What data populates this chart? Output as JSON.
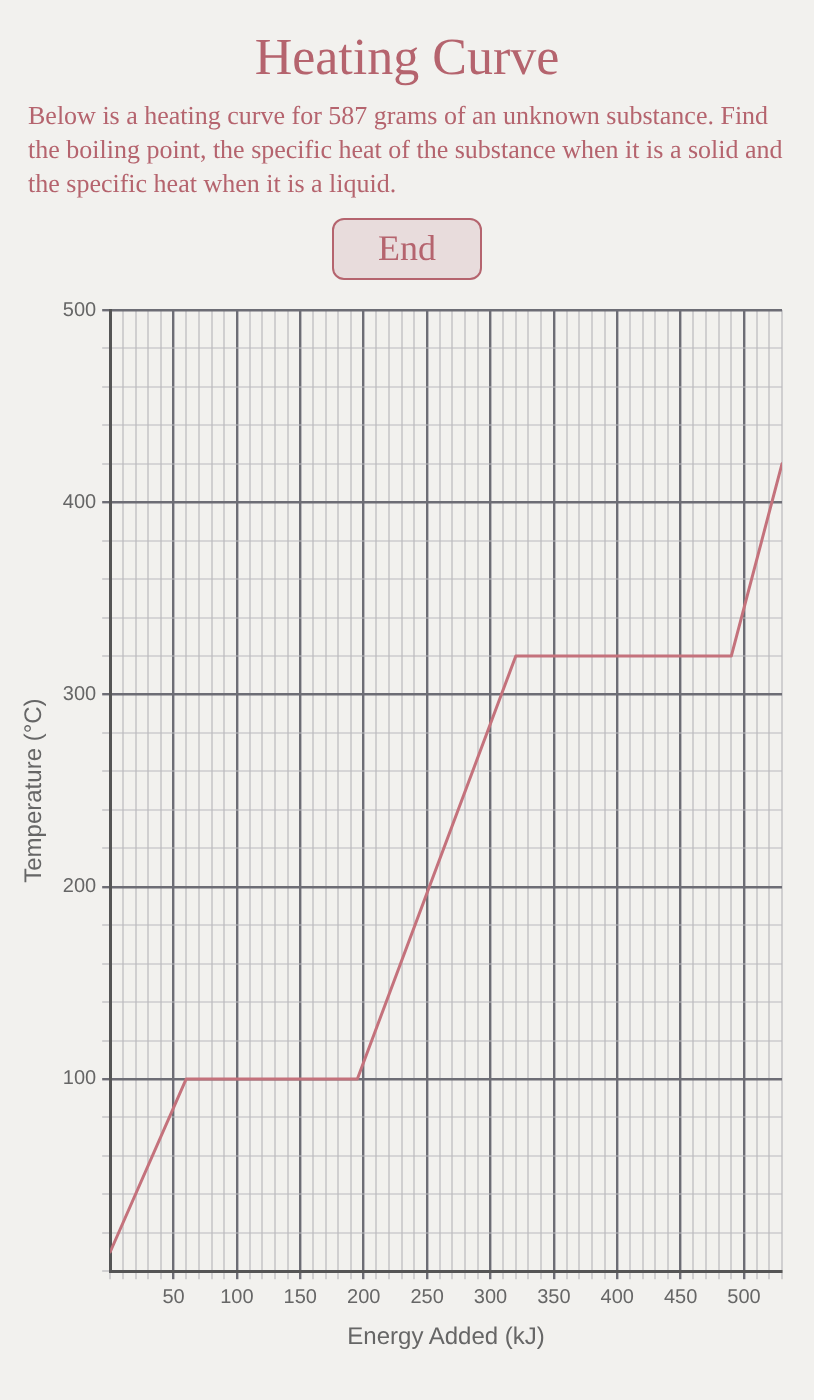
{
  "chart_data": {
    "type": "line",
    "title": "Heating Curve",
    "subtitle": "Below is a heating curve for 587 grams of an unknown substance. Find the boiling point, the specific heat of the substance when it is a solid and the specific heat when it is a liquid.",
    "xlabel": "Energy Added (kJ)",
    "ylabel": "Temperature (°C)",
    "annotations": [
      "End"
    ],
    "x": [
      0,
      60,
      195,
      320,
      490,
      530
    ],
    "series": [
      {
        "color": "#c4727c",
        "values": [
          10,
          100,
          100,
          320,
          320,
          420
        ]
      }
    ],
    "xlim": [
      0,
      530
    ],
    "xticks": [
      {
        "value": 0,
        "label": null
      },
      {
        "value": 10,
        "label": null
      },
      {
        "value": 20,
        "label": null
      },
      {
        "value": 30,
        "label": null
      },
      {
        "value": 40,
        "label": null
      },
      50,
      {
        "value": 60,
        "label": null
      },
      {
        "value": 70,
        "label": null
      },
      {
        "value": 80,
        "label": null
      },
      {
        "value": 90,
        "label": null
      },
      100,
      {
        "value": 110,
        "label": null
      },
      {
        "value": 120,
        "label": null
      },
      {
        "value": 130,
        "label": null
      },
      {
        "value": 140,
        "label": null
      },
      150,
      {
        "value": 160,
        "label": null
      },
      {
        "value": 170,
        "label": null
      },
      {
        "value": 180,
        "label": null
      },
      {
        "value": 190,
        "label": null
      },
      200,
      {
        "value": 210,
        "label": null
      },
      {
        "value": 220,
        "label": null
      },
      {
        "value": 230,
        "label": null
      },
      {
        "value": 240,
        "label": null
      },
      250,
      {
        "value": 260,
        "label": null
      },
      {
        "value": 270,
        "label": null
      },
      {
        "value": 280,
        "label": null
      },
      {
        "value": 290,
        "label": null
      },
      300,
      {
        "value": 310,
        "label": null
      },
      {
        "value": 320,
        "label": null
      },
      {
        "value": 330,
        "label": null
      },
      {
        "value": 340,
        "label": null
      },
      350,
      {
        "value": 360,
        "label": null
      },
      {
        "value": 370,
        "label": null
      },
      {
        "value": 380,
        "label": null
      },
      {
        "value": 390,
        "label": null
      },
      400,
      {
        "value": 410,
        "label": null
      },
      {
        "value": 420,
        "label": null
      },
      {
        "value": 430,
        "label": null
      },
      {
        "value": 440,
        "label": null
      },
      450,
      {
        "value": 460,
        "label": null
      },
      {
        "value": 470,
        "label": null
      },
      {
        "value": 480,
        "label": null
      },
      {
        "value": 490,
        "label": null
      },
      500,
      {
        "value": 510,
        "label": null
      },
      {
        "value": 520,
        "label": null
      },
      {
        "value": 530,
        "label": null
      }
    ],
    "ylim": [
      0,
      500
    ],
    "yticks": [
      {
        "value": 0,
        "label": null
      },
      {
        "value": 20,
        "label": null
      },
      {
        "value": 40,
        "label": null
      },
      {
        "value": 60,
        "label": null
      },
      {
        "value": 80,
        "label": null
      },
      100,
      {
        "value": 120,
        "label": null
      },
      {
        "value": 140,
        "label": null
      },
      {
        "value": 160,
        "label": null
      },
      {
        "value": 180,
        "label": null
      },
      200,
      {
        "value": 220,
        "label": null
      },
      {
        "value": 240,
        "label": null
      },
      {
        "value": 260,
        "label": null
      },
      {
        "value": 280,
        "label": null
      },
      300,
      {
        "value": 320,
        "label": null
      },
      {
        "value": 340,
        "label": null
      },
      {
        "value": 360,
        "label": null
      },
      {
        "value": 380,
        "label": null
      },
      400,
      {
        "value": 420,
        "label": null
      },
      {
        "value": 440,
        "label": null
      },
      {
        "value": 460,
        "label": null
      },
      {
        "value": 480,
        "label": null
      },
      500
    ],
    "grid": true,
    "marker": "none",
    "line_style": "solid",
    "legend": false
  }
}
